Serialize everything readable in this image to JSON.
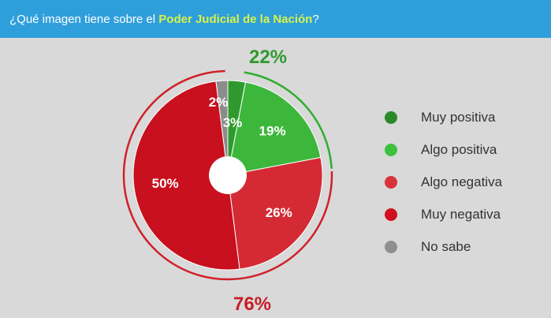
{
  "header": {
    "prefix": "¿Qué imagen tiene sobre el ",
    "highlight": "Poder Judicial de la Nación",
    "suffix": "?"
  },
  "colors": {
    "header_bg": "#2f9fdc",
    "highlight_text": "#d7f24a",
    "positive_arc": "#2fae2f",
    "negative_arc": "#d0202a",
    "positive_total_text": "#2e9a2e",
    "negative_total_text": "#c81e28"
  },
  "chart_data": {
    "type": "pie",
    "donut": true,
    "legend_position": "right",
    "series": [
      {
        "name": "Muy positiva",
        "color": "#2e9a2e",
        "legend_color": "#2a8a2a"
      },
      {
        "name": "Algo positiva",
        "color": "#3cb73c",
        "legend_color": "#3ec13e"
      },
      {
        "name": "Algo negativa",
        "color": "#d42a33",
        "legend_color": "#d8343c"
      },
      {
        "name": "Muy negativa",
        "color": "#c8101e",
        "legend_color": "#d0101e"
      },
      {
        "name": "No sabe",
        "color": "#8c8c8c",
        "legend_color": "#8f8f8f"
      }
    ],
    "slices": [
      {
        "series": "Muy positiva",
        "value": 3,
        "label": "3%"
      },
      {
        "series": "Algo positiva",
        "value": 19,
        "label": "19%"
      },
      {
        "series": "Algo negativa",
        "value": 26,
        "label": "26%"
      },
      {
        "series": "Muy negativa",
        "value": 50,
        "label": "50%"
      },
      {
        "series": "No sabe",
        "value": 2,
        "label": "2%"
      }
    ],
    "totals": {
      "positive": {
        "label": "22%",
        "value": 22
      },
      "negative": {
        "label": "76%",
        "value": 76
      }
    }
  }
}
